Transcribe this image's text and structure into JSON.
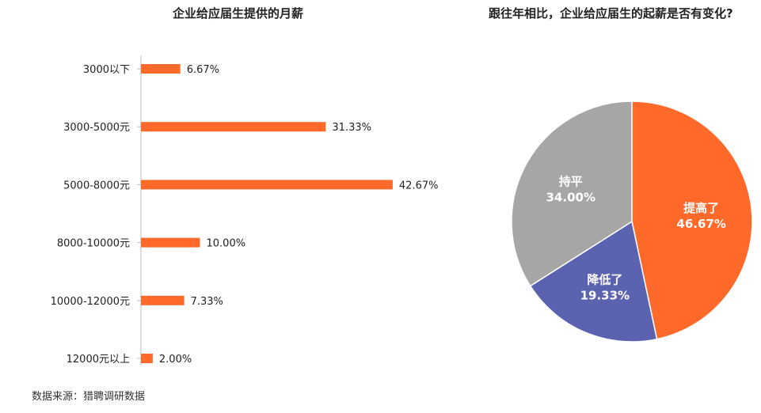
{
  "chart_data": [
    {
      "type": "bar",
      "orientation": "horizontal",
      "title": "企业给应届生提供的月薪",
      "categories": [
        "3000以下",
        "3000-5000元",
        "5000-8000元",
        "8000-10000元",
        "10000-12000元",
        "12000元以上"
      ],
      "values": [
        6.67,
        31.33,
        42.67,
        10.0,
        7.33,
        2.0
      ],
      "value_labels": [
        "6.67%",
        "31.33%",
        "42.67%",
        "10.00%",
        "7.33%",
        "2.00%"
      ],
      "unit": "%",
      "xlim": [
        0,
        100
      ],
      "color": "#FF6A2B",
      "grid": false,
      "legend": "none"
    },
    {
      "type": "pie",
      "title": "跟往年相比，企业给应届生的起薪是否有变化?",
      "slices": [
        {
          "label": "提高了",
          "value": 46.67,
          "value_label": "46.67%",
          "color": "#FF6A2B"
        },
        {
          "label": "降低了",
          "value": 19.33,
          "value_label": "19.33%",
          "color": "#5B63B0"
        },
        {
          "label": "持平",
          "value": 34.0,
          "value_label": "34.00%",
          "color": "#A6A6A6"
        }
      ],
      "legend": "none"
    }
  ],
  "source": "数据来源：猎聘调研数据"
}
